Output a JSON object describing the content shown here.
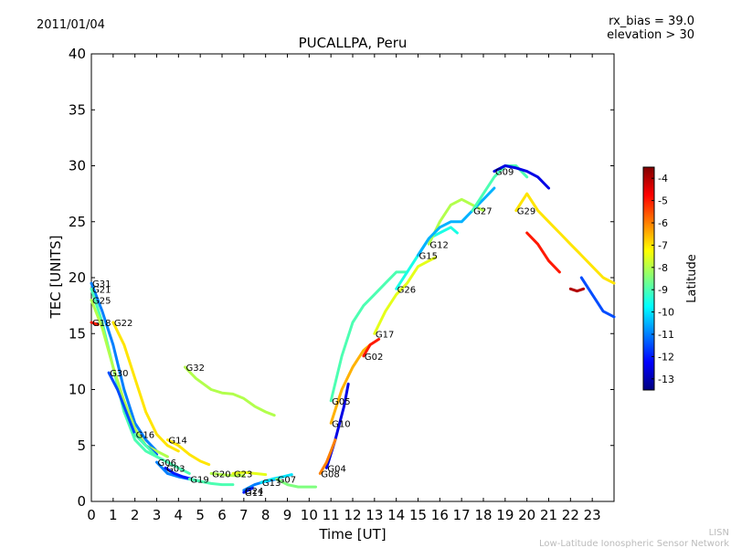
{
  "header": {
    "date": "2011/01/04",
    "rx_bias": "rx_bias = 39.0",
    "elevation": "elevation > 30"
  },
  "footer": {
    "line1": "LISN",
    "line2": "Low-Latitude Ionospheric Sensor Network"
  },
  "colors": {
    "axis": "#000000",
    "footer_text": "#bbbbbb",
    "colormap": [
      "#00007f",
      "#0000ff",
      "#007fff",
      "#00ffff",
      "#7fff7f",
      "#ffff00",
      "#ff7f00",
      "#ff0000",
      "#7f0000"
    ]
  },
  "chart_data": {
    "type": "scatter",
    "title": "PUCALLPA, Peru",
    "xlabel": "Time [UT]",
    "ylabel": "TEC [UNITS]",
    "xlim": [
      0,
      24
    ],
    "ylim": [
      0,
      40
    ],
    "xticks": [
      "0",
      "1",
      "2",
      "3",
      "4",
      "5",
      "6",
      "7",
      "8",
      "9",
      "10",
      "11",
      "12",
      "13",
      "14",
      "15",
      "16",
      "17",
      "18",
      "19",
      "20",
      "21",
      "22",
      "23"
    ],
    "yticks": [
      "0",
      "5",
      "10",
      "15",
      "20",
      "25",
      "30",
      "35",
      "40"
    ],
    "colorbar": {
      "label": "Latitude",
      "min": -13.5,
      "max": -3.5,
      "ticks": [
        "-4",
        "-5",
        "-6",
        "-7",
        "-8",
        "-9",
        "-10",
        "-11",
        "-12",
        "-13"
      ]
    },
    "series": [
      {
        "name": "G31",
        "lat": -11.0,
        "points": [
          [
            0,
            19.5
          ],
          [
            0.5,
            17
          ],
          [
            1,
            14
          ],
          [
            1.5,
            10
          ],
          [
            2,
            7
          ],
          [
            2.5,
            5.5
          ],
          [
            3,
            4.5
          ]
        ]
      },
      {
        "name": "G21",
        "lat": -9.0,
        "points": [
          [
            0,
            19
          ],
          [
            0.5,
            16
          ],
          [
            1,
            12
          ],
          [
            1.5,
            8
          ],
          [
            2,
            5.5
          ],
          [
            2.5,
            4.5
          ],
          [
            3,
            4
          ]
        ]
      },
      {
        "name": "G25",
        "lat": -8.0,
        "points": [
          [
            0,
            18
          ],
          [
            0.5,
            15.5
          ],
          [
            1,
            12
          ],
          [
            1.5,
            9
          ],
          [
            2,
            6.5
          ],
          [
            2.5,
            5
          ],
          [
            3,
            4.5
          ],
          [
            3.5,
            4
          ]
        ]
      },
      {
        "name": "G18",
        "lat": -5.0,
        "points": [
          [
            0,
            16
          ],
          [
            0.3,
            15.8
          ]
        ]
      },
      {
        "name": "G22",
        "lat": -7.0,
        "points": [
          [
            1,
            16
          ],
          [
            1.5,
            14
          ],
          [
            2,
            11
          ],
          [
            2.5,
            8
          ],
          [
            3,
            6
          ],
          [
            3.5,
            5
          ],
          [
            4,
            4.5
          ]
        ]
      },
      {
        "name": "G30",
        "lat": -11.5,
        "points": [
          [
            0.8,
            11.5
          ],
          [
            1.2,
            10
          ],
          [
            1.6,
            8
          ],
          [
            2,
            6
          ],
          [
            2.5,
            5
          ],
          [
            3,
            4.2
          ]
        ]
      },
      {
        "name": "G16",
        "lat": -9.0,
        "points": [
          [
            2,
            6
          ],
          [
            2.5,
            5
          ],
          [
            3,
            4
          ],
          [
            3.5,
            3.5
          ],
          [
            4,
            3
          ],
          [
            4.5,
            2.5
          ]
        ]
      },
      {
        "name": "G14",
        "lat": -7.0,
        "points": [
          [
            3.5,
            5.5
          ],
          [
            4,
            5
          ],
          [
            4.5,
            4.2
          ],
          [
            5,
            3.6
          ],
          [
            5.4,
            3.3
          ]
        ]
      },
      {
        "name": "G06",
        "lat": -11.0,
        "points": [
          [
            3,
            3.5
          ],
          [
            3.5,
            2.5
          ],
          [
            4,
            2.2
          ],
          [
            4.5,
            2
          ],
          [
            5,
            1.8
          ]
        ]
      },
      {
        "name": "G03",
        "lat": -12.0,
        "points": [
          [
            3.4,
            3
          ],
          [
            3.8,
            2.5
          ],
          [
            4.2,
            2.2
          ],
          [
            4.6,
            2
          ]
        ]
      },
      {
        "name": "G19",
        "lat": -9.0,
        "points": [
          [
            4.5,
            2
          ],
          [
            5,
            1.8
          ],
          [
            5.5,
            1.6
          ],
          [
            6,
            1.5
          ],
          [
            6.5,
            1.5
          ]
        ]
      },
      {
        "name": "G32",
        "lat": -8.0,
        "points": [
          [
            4.3,
            12
          ],
          [
            4.8,
            11
          ],
          [
            5.5,
            10
          ],
          [
            6,
            9.7
          ],
          [
            6.5,
            9.6
          ],
          [
            7,
            9.2
          ],
          [
            7.5,
            8.5
          ],
          [
            8,
            8
          ],
          [
            8.4,
            7.7
          ]
        ]
      },
      {
        "name": "G20",
        "lat": -8.0,
        "points": [
          [
            5.5,
            2.5
          ],
          [
            6,
            2.4
          ],
          [
            6.5,
            2.3
          ],
          [
            7,
            2.3
          ]
        ]
      },
      {
        "name": "G23",
        "lat": -7.5,
        "points": [
          [
            6.5,
            2.5
          ],
          [
            7,
            2.6
          ],
          [
            7.5,
            2.5
          ],
          [
            8,
            2.4
          ]
        ]
      },
      {
        "name": "G24",
        "lat": -11.0,
        "points": [
          [
            7,
            1
          ],
          [
            7.5,
            1.5
          ],
          [
            8,
            1.8
          ],
          [
            8.5,
            2
          ]
        ]
      },
      {
        "name": "G11",
        "lat": -12.0,
        "points": [
          [
            7,
            0.8
          ],
          [
            7.4,
            1.2
          ]
        ]
      },
      {
        "name": "G13",
        "lat": -10.0,
        "points": [
          [
            7.8,
            1.7
          ],
          [
            8.3,
            2
          ],
          [
            8.8,
            2.2
          ],
          [
            9.2,
            2.4
          ]
        ]
      },
      {
        "name": "G07",
        "lat": -8.5,
        "points": [
          [
            8.5,
            2
          ],
          [
            9,
            1.5
          ],
          [
            9.5,
            1.3
          ],
          [
            10,
            1.3
          ],
          [
            10.3,
            1.3
          ]
        ]
      },
      {
        "name": "G04",
        "lat": -12.5,
        "points": [
          [
            10.8,
            3
          ],
          [
            11.2,
            5.5
          ],
          [
            11.6,
            8.5
          ],
          [
            11.8,
            10.5
          ]
        ]
      },
      {
        "name": "G08",
        "lat": -6.0,
        "points": [
          [
            10.5,
            2.5
          ],
          [
            10.8,
            3.5
          ],
          [
            11,
            4.5
          ],
          [
            11.2,
            5.5
          ]
        ]
      },
      {
        "name": "G10",
        "lat": -6.5,
        "points": [
          [
            11,
            7
          ],
          [
            11.5,
            10
          ],
          [
            12,
            12
          ],
          [
            12.5,
            13.5
          ],
          [
            12.8,
            14
          ]
        ]
      },
      {
        "name": "G02",
        "lat": -5.0,
        "points": [
          [
            12.5,
            13
          ],
          [
            12.8,
            14
          ],
          [
            13.2,
            14.5
          ]
        ]
      },
      {
        "name": "G05",
        "lat": -9.0,
        "points": [
          [
            11,
            9
          ],
          [
            11.5,
            13
          ],
          [
            12,
            16
          ],
          [
            12.5,
            17.5
          ],
          [
            13,
            18.5
          ],
          [
            13.5,
            19.5
          ],
          [
            14,
            20.5
          ],
          [
            14.5,
            20.5
          ]
        ]
      },
      {
        "name": "G17",
        "lat": -7.5,
        "points": [
          [
            13,
            15
          ],
          [
            13.5,
            17
          ],
          [
            14,
            18.5
          ],
          [
            14.5,
            19.5
          ],
          [
            15,
            21
          ],
          [
            15.5,
            21.5
          ],
          [
            15.8,
            21.8
          ]
        ]
      },
      {
        "name": "G26",
        "lat": -9.5,
        "points": [
          [
            14,
            19
          ],
          [
            14.5,
            20.5
          ],
          [
            15,
            22
          ],
          [
            15.5,
            23.5
          ],
          [
            16,
            24
          ],
          [
            16.5,
            24.5
          ],
          [
            16.8,
            24
          ]
        ]
      },
      {
        "name": "G12",
        "lat": -8.0,
        "points": [
          [
            15.5,
            23
          ],
          [
            16,
            25
          ],
          [
            16.5,
            26.5
          ],
          [
            17,
            27
          ],
          [
            17.5,
            26.5
          ],
          [
            18,
            26
          ]
        ]
      },
      {
        "name": "G15",
        "lat": -10.5,
        "points": [
          [
            15,
            22
          ],
          [
            15.5,
            23.5
          ],
          [
            16,
            24.5
          ],
          [
            16.5,
            25
          ],
          [
            17,
            25
          ],
          [
            17.5,
            26
          ],
          [
            18,
            27
          ],
          [
            18.5,
            28
          ]
        ]
      },
      {
        "name": "G27",
        "lat": -9.0,
        "points": [
          [
            17.5,
            26
          ],
          [
            18,
            27.5
          ],
          [
            18.5,
            29
          ],
          [
            19,
            30
          ],
          [
            19.5,
            30
          ],
          [
            20,
            29
          ]
        ]
      },
      {
        "name": "G09",
        "lat": -12.5,
        "points": [
          [
            18.5,
            29.5
          ],
          [
            19,
            30
          ],
          [
            19.5,
            29.8
          ],
          [
            20,
            29.5
          ],
          [
            20.5,
            29
          ],
          [
            21,
            28
          ]
        ]
      },
      {
        "name": "G29",
        "lat": -7.0,
        "points": [
          [
            19.5,
            26
          ],
          [
            20,
            27.5
          ],
          [
            20.5,
            26
          ],
          [
            21,
            25
          ],
          [
            21.5,
            24
          ],
          [
            22,
            23
          ],
          [
            22.5,
            22
          ],
          [
            23,
            21
          ],
          [
            23.5,
            20
          ],
          [
            24,
            19.5
          ]
        ]
      },
      {
        "name": "",
        "lat": -4.0,
        "points": [
          [
            22,
            19
          ],
          [
            22.3,
            18.8
          ],
          [
            22.6,
            19
          ]
        ]
      },
      {
        "name": "",
        "lat": -11.5,
        "points": [
          [
            22.5,
            20
          ],
          [
            23,
            18.5
          ],
          [
            23.5,
            17
          ],
          [
            24,
            16.5
          ]
        ]
      },
      {
        "name": "",
        "lat": -5.0,
        "points": [
          [
            20,
            24
          ],
          [
            20.5,
            23
          ],
          [
            21,
            21.5
          ],
          [
            21.5,
            20.5
          ]
        ]
      }
    ]
  }
}
